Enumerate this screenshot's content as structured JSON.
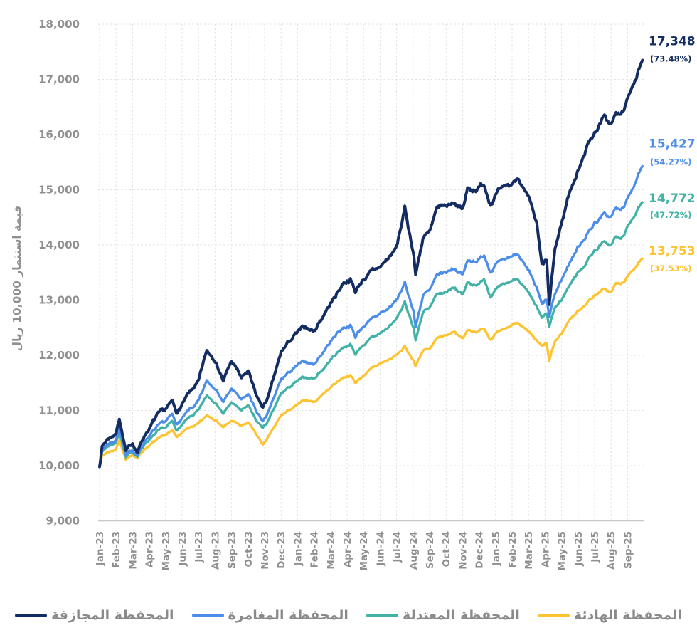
{
  "chart_data": {
    "type": "line",
    "title": "",
    "ylabel": "قيمة استثمار 10,000 ريال",
    "ylim": [
      9000,
      18000
    ],
    "ytick_step": 1000,
    "ytick_labels": [
      "18,000",
      "17,000",
      "16,000",
      "15,000",
      "14,000",
      "13,000",
      "12,000",
      "11,000",
      "10,000",
      "9,000"
    ],
    "xtick_labels": [
      "Jan-23",
      "Feb-23",
      "Mar-23",
      "Apr-23",
      "May-23",
      "Jun-23",
      "Jul-23",
      "Aug-23",
      "Sep-23",
      "Oct-23",
      "Nov-23",
      "Dec-23",
      "Jan-24",
      "Feb-24",
      "Mar-24",
      "Apr-24",
      "May-24",
      "Jun-24",
      "Jul-24",
      "Aug-24",
      "Sep-24",
      "Oct-24",
      "Nov-24",
      "Dec-24",
      "Jan-25",
      "Feb-25",
      "Mar-25",
      "Apr-25",
      "May-25",
      "Jun-25",
      "Jul-25",
      "Aug-25",
      "Sep-25"
    ],
    "x_unit": "months since Jan-2023",
    "grid": "dashed",
    "legend_position": "bottom",
    "x_months": [
      0,
      0.15,
      0.5,
      1.0,
      1.2,
      1.6,
      2.0,
      2.3,
      2.8,
      3.5,
      4.0,
      4.4,
      4.7,
      5.3,
      6.0,
      6.5,
      7.0,
      7.5,
      8.0,
      8.6,
      9.0,
      9.5,
      9.9,
      10.3,
      11.0,
      11.5,
      12.0,
      12.5,
      13.0,
      13.5,
      14.0,
      14.7,
      15.2,
      15.5,
      16.0,
      16.5,
      17.0,
      17.5,
      18.0,
      18.5,
      19.05,
      19.15,
      19.6,
      20.0,
      20.5,
      21.0,
      21.5,
      22.0,
      22.3,
      23.0,
      23.3,
      23.7,
      24.0,
      24.5,
      25.0,
      25.4,
      26.0,
      26.5,
      26.8,
      27.1,
      27.25,
      27.6,
      28.0,
      28.5,
      29.0,
      29.5,
      30.0,
      30.5,
      31.0,
      31.3,
      31.6,
      32.0,
      32.3,
      32.6,
      32.9
    ],
    "series": [
      {
        "id": "risky",
        "label": "المحفظة المجازفة",
        "color": "#132c61",
        "end_value": "17,348",
        "end_pct": "(73.48%)",
        "volatility": 1.0,
        "values": [
          9980,
          10350,
          10500,
          10600,
          10880,
          10250,
          10400,
          10250,
          10600,
          10900,
          11000,
          11150,
          10950,
          11250,
          11500,
          12050,
          11950,
          11550,
          11900,
          11600,
          11700,
          11250,
          11050,
          11300,
          12050,
          12250,
          12400,
          12500,
          12450,
          12700,
          12950,
          13300,
          13400,
          13150,
          13400,
          13500,
          13600,
          13750,
          13950,
          14660,
          13800,
          13450,
          14150,
          14200,
          14650,
          14700,
          14800,
          14650,
          15000,
          15050,
          15100,
          14800,
          14950,
          15000,
          15100,
          15250,
          14800,
          14350,
          13600,
          13700,
          12880,
          13900,
          14400,
          15000,
          15350,
          15800,
          16050,
          16300,
          16200,
          16400,
          16350,
          16600,
          16900,
          17100,
          17348
        ]
      },
      {
        "id": "adventurous",
        "label": "المحفظة المغامرة",
        "color": "#4b8de9",
        "end_value": "15,427",
        "end_pct": "(54.27%)",
        "volatility": 0.8,
        "values": [
          9990,
          10280,
          10400,
          10480,
          10720,
          10180,
          10300,
          10200,
          10480,
          10700,
          10780,
          10900,
          10750,
          10950,
          11150,
          11520,
          11430,
          11150,
          11400,
          11200,
          11280,
          10950,
          10800,
          11000,
          11550,
          11700,
          11800,
          11880,
          11850,
          12050,
          12250,
          12500,
          12550,
          12350,
          12550,
          12650,
          12750,
          12850,
          13000,
          13300,
          12800,
          12520,
          13100,
          13150,
          13450,
          13500,
          13600,
          13450,
          13700,
          13750,
          13850,
          13550,
          13650,
          13700,
          13800,
          13850,
          13500,
          13200,
          12900,
          13000,
          12680,
          13100,
          13350,
          13700,
          13950,
          14200,
          14400,
          14550,
          14500,
          14650,
          14600,
          14800,
          15050,
          15250,
          15427
        ]
      },
      {
        "id": "moderate",
        "label": "المحفظة المعتدلة",
        "color": "#43b2a6",
        "end_value": "14,772",
        "end_pct": "(47.72%)",
        "volatility": 0.65,
        "values": [
          9990,
          10240,
          10350,
          10420,
          10620,
          10150,
          10260,
          10180,
          10420,
          10600,
          10680,
          10780,
          10650,
          10820,
          10980,
          11250,
          11180,
          10950,
          11150,
          11000,
          11080,
          10800,
          10680,
          10850,
          11300,
          11420,
          11520,
          11600,
          11580,
          11750,
          11920,
          12150,
          12200,
          12020,
          12200,
          12300,
          12400,
          12500,
          12650,
          12950,
          12500,
          12280,
          12800,
          12850,
          13100,
          13150,
          13250,
          13100,
          13300,
          13300,
          13400,
          13100,
          13200,
          13250,
          13350,
          13400,
          13100,
          12850,
          12650,
          12750,
          12500,
          12850,
          13000,
          13300,
          13500,
          13700,
          13900,
          14050,
          14000,
          14150,
          14100,
          14300,
          14500,
          14650,
          14772
        ]
      },
      {
        "id": "calm",
        "label": "المحفظة الهادئة",
        "color": "#fdc331",
        "end_value": "13,753",
        "end_pct": "(37.53%)",
        "volatility": 0.5,
        "values": [
          9990,
          10180,
          10260,
          10300,
          10480,
          10100,
          10200,
          10150,
          10330,
          10470,
          10540,
          10620,
          10520,
          10650,
          10750,
          10900,
          10850,
          10700,
          10820,
          10720,
          10780,
          10550,
          10380,
          10550,
          10900,
          11000,
          11100,
          11180,
          11150,
          11300,
          11420,
          11600,
          11650,
          11500,
          11650,
          11750,
          11850,
          11920,
          12000,
          12150,
          11900,
          11800,
          12100,
          12100,
          12300,
          12350,
          12450,
          12300,
          12450,
          12450,
          12500,
          12300,
          12400,
          12450,
          12550,
          12600,
          12400,
          12250,
          12150,
          12200,
          11880,
          12250,
          12400,
          12650,
          12800,
          12950,
          13100,
          13200,
          13150,
          13300,
          13280,
          13400,
          13550,
          13650,
          13753
        ]
      }
    ]
  },
  "colors": {
    "grid": "#e1e1e1",
    "axis": "#c8c8c8",
    "tick_text": "#8f8f8f",
    "legend_text": "#8a8a8a",
    "background": "#ffffff"
  }
}
